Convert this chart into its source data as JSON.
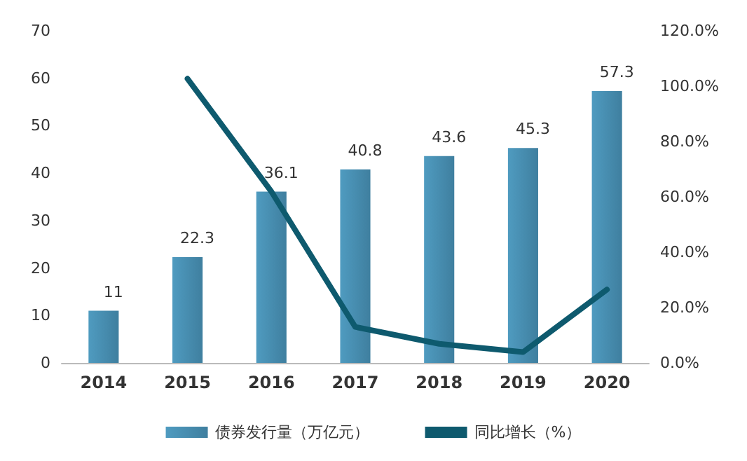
{
  "chart_data": {
    "type": "bar",
    "categories": [
      "2014",
      "2015",
      "2016",
      "2017",
      "2018",
      "2019",
      "2020"
    ],
    "series": [
      {
        "name": "债券发行量（万亿元）",
        "color": "#4f9bc0",
        "values": [
          11,
          22.3,
          36.1,
          40.8,
          43.6,
          45.3,
          57.3
        ]
      },
      {
        "name": "同比增长（%）",
        "type": "line",
        "axis": "y2",
        "color": "#0e5a6e",
        "values": [
          null,
          102.7,
          61.9,
          13.0,
          6.9,
          3.9,
          26.5
        ]
      }
    ],
    "ylim": [
      0,
      70
    ],
    "yticks": [
      0,
      10,
      20,
      30,
      40,
      50,
      60,
      70
    ],
    "y2lim": [
      0,
      120
    ],
    "y2ticks": [
      {
        "value": 0,
        "label": "0.0%"
      },
      {
        "value": 20,
        "label": "20.0%"
      },
      {
        "value": 40,
        "label": "40.0%"
      },
      {
        "value": 60,
        "label": "60.0%"
      },
      {
        "value": 80,
        "label": "80.0%"
      },
      {
        "value": 100,
        "label": "100.0%"
      },
      {
        "value": 120,
        "label": "120.0%"
      }
    ],
    "value_labels": [
      "11",
      "22.3",
      "36.1",
      "40.8",
      "43.6",
      "45.3",
      "57.3"
    ],
    "grid": false,
    "legend": "bottom",
    "marker": "none",
    "line_style": "solid"
  }
}
